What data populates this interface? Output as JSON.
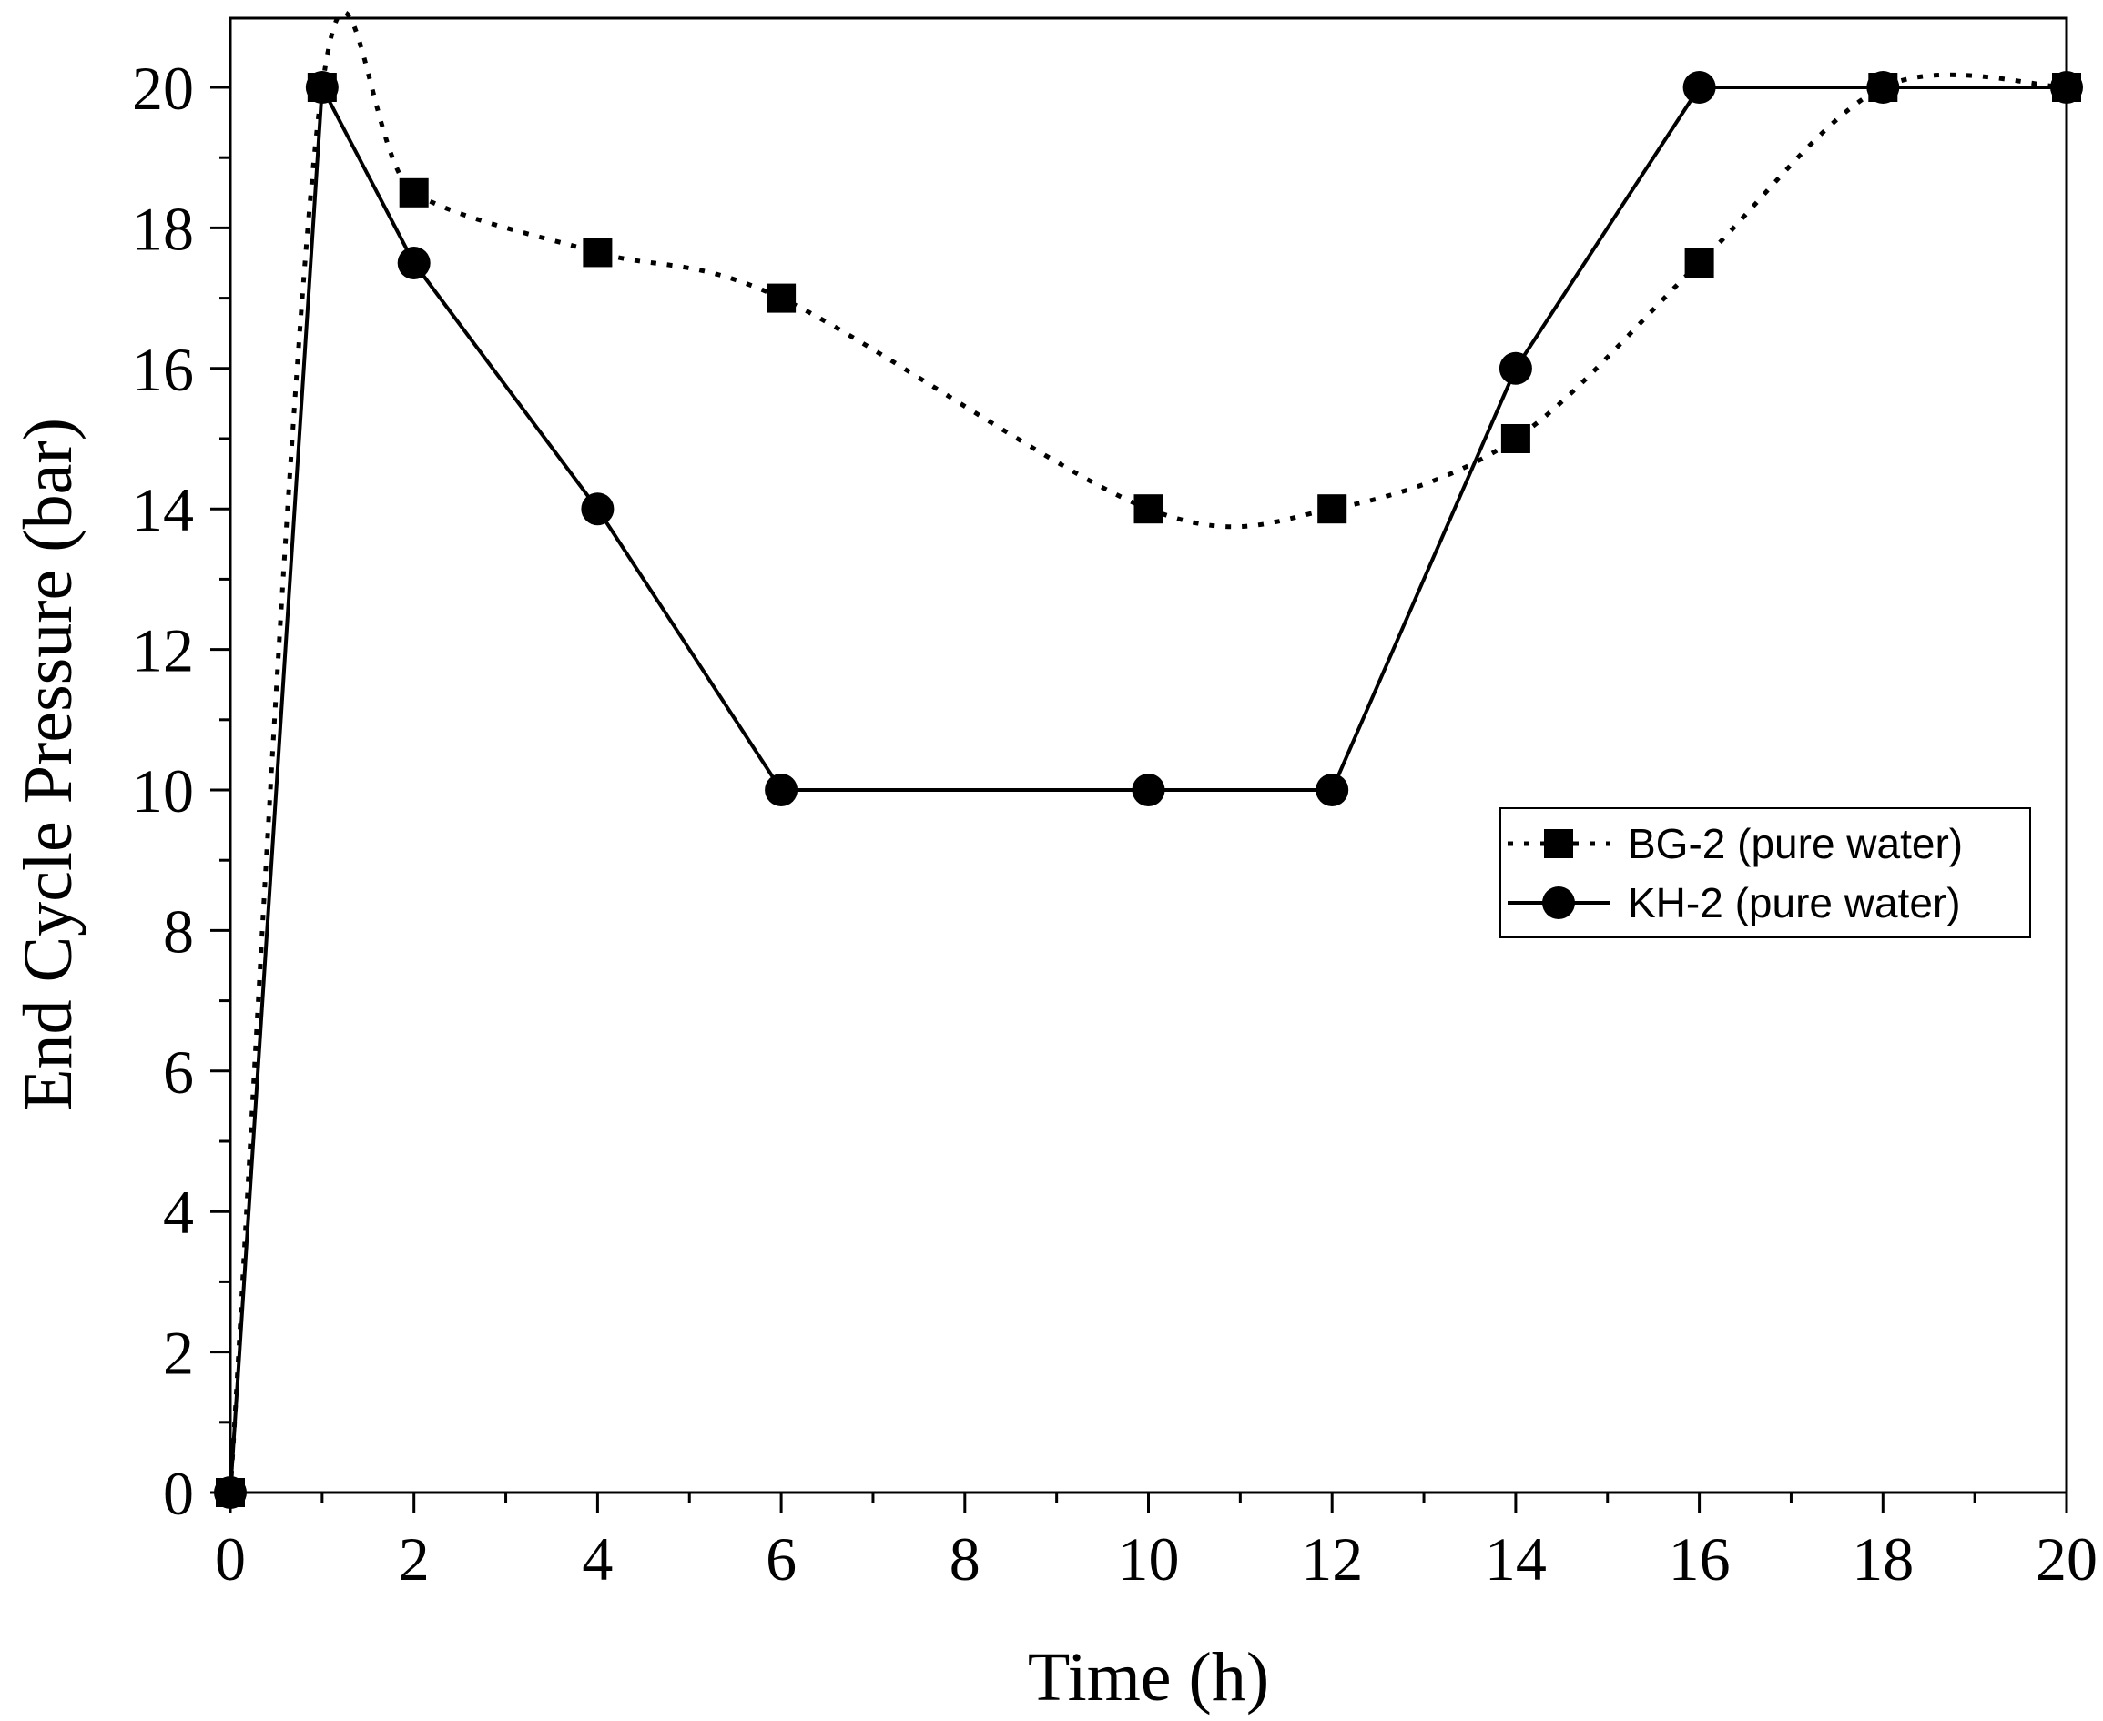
{
  "chart_data": {
    "type": "line",
    "title": "",
    "xlabel": "Time (h)",
    "ylabel": "End Cycle Pressure (bar)",
    "xlim": [
      0,
      20
    ],
    "ylim": [
      0,
      21
    ],
    "xticks": [
      0,
      2,
      4,
      6,
      8,
      10,
      12,
      14,
      16,
      18,
      20
    ],
    "yticks": [
      0,
      2,
      4,
      6,
      8,
      10,
      12,
      14,
      16,
      18,
      20
    ],
    "grid": false,
    "legend_position": "center-right",
    "series": [
      {
        "name": "BG-2 (pure water)",
        "marker": "square",
        "line_style": "dotted",
        "color": "#000000",
        "x": [
          0,
          1,
          2,
          4,
          6,
          10,
          12,
          14,
          16,
          18,
          20
        ],
        "y": [
          0,
          20,
          18.5,
          17.65,
          17,
          14,
          14,
          15,
          17.5,
          20,
          20
        ]
      },
      {
        "name": "KH-2 (pure water)",
        "marker": "circle",
        "line_style": "solid",
        "color": "#000000",
        "x": [
          0,
          1,
          2,
          4,
          6,
          10,
          12,
          14,
          16,
          18,
          20
        ],
        "y": [
          0,
          20,
          17.5,
          14,
          10,
          10,
          10,
          16,
          20,
          20,
          20
        ]
      }
    ]
  }
}
